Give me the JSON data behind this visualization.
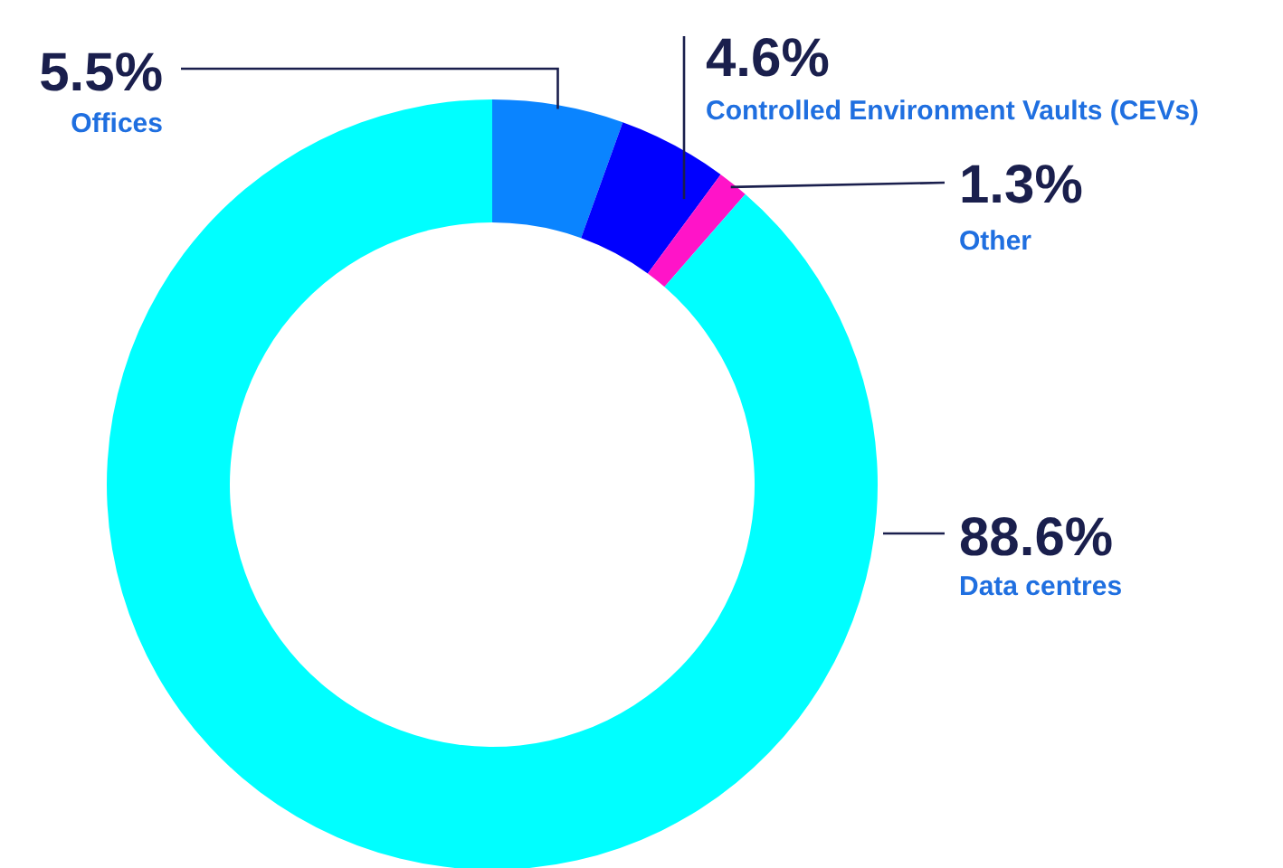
{
  "chart_data": {
    "type": "donut",
    "categories": [
      "Offices",
      "Controlled Environment Vaults (CEVs)",
      "Other",
      "Data centres"
    ],
    "values": [
      5.5,
      4.6,
      1.3,
      88.6
    ],
    "value_labels": [
      "5.5%",
      "4.6%",
      "1.3%",
      "88.6%"
    ],
    "colors": [
      "#0a84ff",
      "#0000ff",
      "#ff14c8",
      "#00ffff"
    ]
  }
}
